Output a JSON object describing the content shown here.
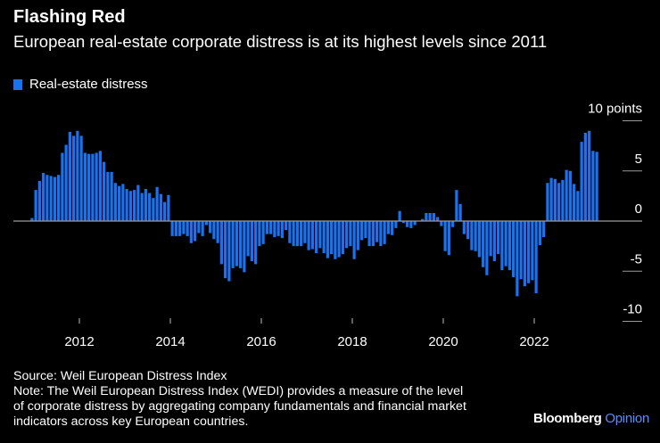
{
  "header": {
    "title": "Flashing Red",
    "subtitle": "European real-estate corporate distress is at its highest levels since 2011"
  },
  "footer": {
    "source": "Source: Weil European Distress Index",
    "note_lines": [
      "Note: The Weil European Distress Index (WEDI) provides a measure of the level",
      "of corporate distress by aggregating company fundamentals and financial market",
      "indicators across key European countries."
    ]
  },
  "brand": {
    "name": "Bloomberg",
    "suffix": "Opinion"
  },
  "colors": {
    "bar": "#1a72f0",
    "zero_line": "#9a9a9a",
    "background": "#000000"
  },
  "chart_data": {
    "type": "bar",
    "title": "Flashing Red",
    "legend": [
      "Real-estate distress"
    ],
    "legend_position": "top-left",
    "ylabel": "points",
    "ylim": [
      -10,
      10
    ],
    "y_ticks": [
      {
        "value": 10,
        "label": "10 points"
      },
      {
        "value": 5,
        "label": "5"
      },
      {
        "value": 0,
        "label": "0"
      },
      {
        "value": -5,
        "label": "-5"
      },
      {
        "value": -10,
        "label": "-10"
      }
    ],
    "x_ticks": [
      "2012",
      "2014",
      "2016",
      "2018",
      "2020",
      "2022"
    ],
    "x_start": "2010-12",
    "frequency": "monthly",
    "series": [
      {
        "name": "Real-estate distress",
        "values": [
          0.3,
          3.1,
          4.0,
          4.8,
          4.6,
          4.5,
          4.4,
          4.6,
          6.8,
          7.6,
          8.9,
          8.5,
          9.0,
          8.5,
          6.8,
          6.7,
          6.7,
          6.8,
          7.0,
          5.9,
          4.9,
          4.9,
          3.8,
          3.5,
          3.7,
          3.2,
          3.0,
          3.1,
          3.6,
          2.8,
          3.2,
          2.8,
          2.3,
          3.4,
          2.7,
          1.9,
          2.6,
          -1.5,
          -1.5,
          -1.5,
          -1.3,
          -1.5,
          -2.2,
          -2.0,
          -1.2,
          -1.5,
          -0.4,
          -1.2,
          -1.8,
          -2.2,
          -4.3,
          -5.7,
          -6.0,
          -4.7,
          -4.5,
          -4.7,
          -5.1,
          -3.5,
          -4.0,
          -4.3,
          -2.5,
          -2.3,
          -1.3,
          -1.3,
          -1.6,
          -1.5,
          -1.7,
          -0.9,
          -2.2,
          -2.5,
          -2.5,
          -2.5,
          -2.2,
          -2.9,
          -2.8,
          -3.2,
          -2.7,
          -3.2,
          -3.7,
          -3.3,
          -3.8,
          -3.6,
          -3.3,
          -2.7,
          -2.5,
          -3.8,
          -2.9,
          -1.9,
          -1.7,
          -2.5,
          -2.5,
          -2.1,
          -2.5,
          -2.3,
          -1.3,
          -1.4,
          -0.7,
          1.0,
          -0.2,
          -0.6,
          -0.7,
          -0.4,
          0.0,
          0.2,
          0.8,
          0.8,
          0.8,
          0.4,
          -0.5,
          -3.0,
          -3.4,
          -0.6,
          3.1,
          1.7,
          -1.3,
          -1.8,
          -2.9,
          -3.0,
          -3.6,
          -4.6,
          -5.4,
          -3.5,
          -4.0,
          -3.3,
          -4.9,
          -4.5,
          -4.9,
          -5.6,
          -7.5,
          -5.8,
          -6.5,
          -6.2,
          -5.9,
          -7.2,
          -2.4,
          -1.6,
          3.8,
          4.3,
          4.2,
          3.8,
          4.1,
          5.1,
          5.0,
          3.7,
          3.0,
          7.9,
          8.8,
          9.0,
          7.0,
          6.9
        ]
      }
    ]
  }
}
